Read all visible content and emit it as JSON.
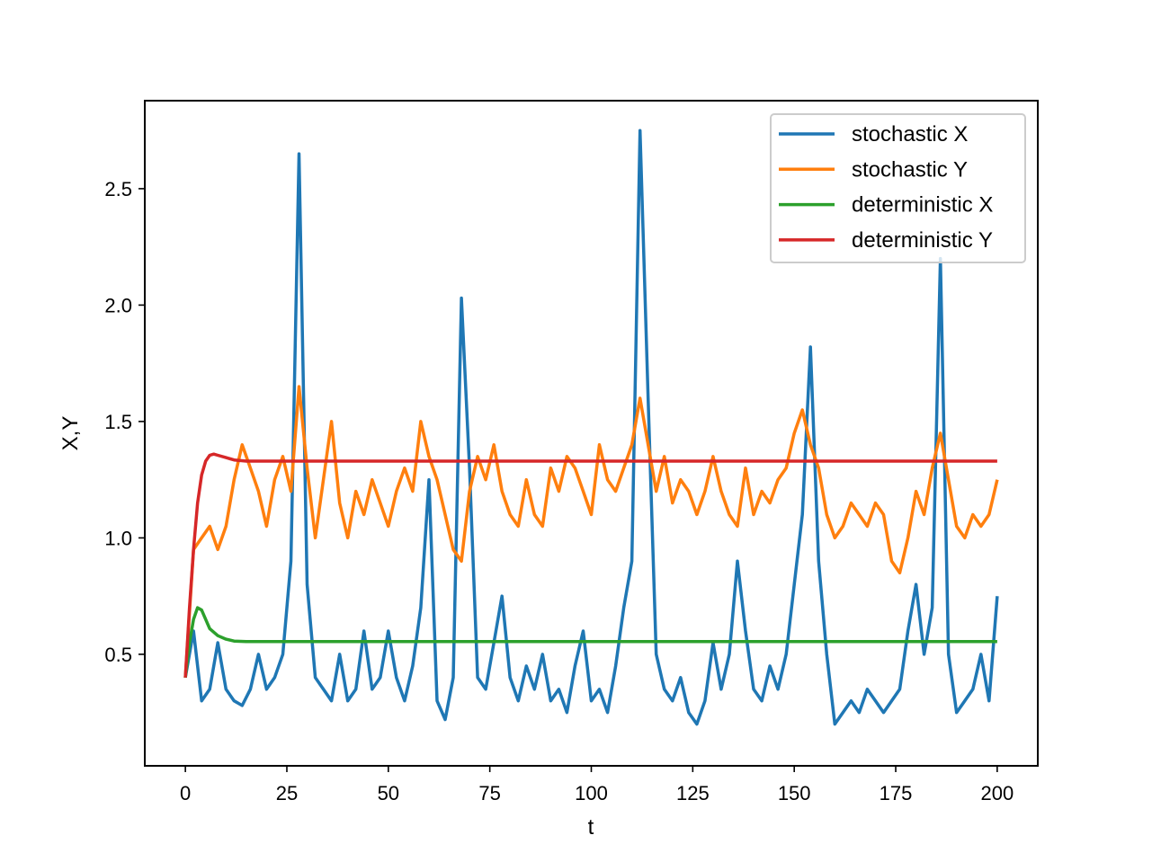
{
  "chart_data": {
    "type": "line",
    "title": "",
    "xlabel": "t",
    "ylabel": "X,Y",
    "xlim": [
      -10,
      210
    ],
    "ylim": [
      0.021,
      2.878
    ],
    "xticks": [
      0,
      25,
      50,
      75,
      100,
      125,
      150,
      175,
      200
    ],
    "xtick_labels": [
      "0",
      "25",
      "50",
      "75",
      "100",
      "125",
      "150",
      "175",
      "200"
    ],
    "yticks": [
      0.5,
      1.0,
      1.5,
      2.0,
      2.5
    ],
    "ytick_labels": [
      "0.5",
      "1.0",
      "1.5",
      "2.0",
      "2.5"
    ],
    "grid": false,
    "legend_position": "top-right",
    "series": [
      {
        "name": "stochastic X",
        "color": "#1f77b4",
        "x_start": 0,
        "x_step": 2,
        "values": [
          0.4,
          0.6,
          0.3,
          0.35,
          0.55,
          0.35,
          0.3,
          0.28,
          0.35,
          0.5,
          0.35,
          0.4,
          0.5,
          0.9,
          2.65,
          0.8,
          0.4,
          0.35,
          0.3,
          0.5,
          0.3,
          0.35,
          0.6,
          0.35,
          0.4,
          0.6,
          0.4,
          0.3,
          0.45,
          0.7,
          1.25,
          0.3,
          0.22,
          0.4,
          2.03,
          1.3,
          0.4,
          0.35,
          0.55,
          0.75,
          0.4,
          0.3,
          0.45,
          0.35,
          0.5,
          0.3,
          0.35,
          0.25,
          0.45,
          0.6,
          0.3,
          0.35,
          0.25,
          0.45,
          0.7,
          0.9,
          2.75,
          1.6,
          0.5,
          0.35,
          0.3,
          0.4,
          0.25,
          0.2,
          0.3,
          0.55,
          0.35,
          0.5,
          0.9,
          0.6,
          0.35,
          0.3,
          0.45,
          0.35,
          0.5,
          0.8,
          1.1,
          1.82,
          0.9,
          0.5,
          0.2,
          0.25,
          0.3,
          0.25,
          0.35,
          0.3,
          0.25,
          0.3,
          0.35,
          0.6,
          0.8,
          0.5,
          0.7,
          2.2,
          0.5,
          0.25,
          0.3,
          0.35,
          0.5,
          0.3,
          0.75
        ]
      },
      {
        "name": "stochastic Y",
        "color": "#ff7f0e",
        "x_start": 0,
        "x_step": 2,
        "values": [
          0.4,
          0.95,
          1.0,
          1.05,
          0.95,
          1.05,
          1.25,
          1.4,
          1.3,
          1.2,
          1.05,
          1.25,
          1.35,
          1.2,
          1.65,
          1.3,
          1.0,
          1.25,
          1.5,
          1.15,
          1.0,
          1.2,
          1.1,
          1.25,
          1.15,
          1.05,
          1.2,
          1.3,
          1.2,
          1.5,
          1.35,
          1.25,
          1.1,
          0.95,
          0.9,
          1.2,
          1.35,
          1.25,
          1.4,
          1.2,
          1.1,
          1.05,
          1.25,
          1.1,
          1.05,
          1.3,
          1.2,
          1.35,
          1.3,
          1.2,
          1.1,
          1.4,
          1.25,
          1.2,
          1.3,
          1.4,
          1.6,
          1.4,
          1.2,
          1.35,
          1.15,
          1.25,
          1.2,
          1.1,
          1.2,
          1.35,
          1.2,
          1.1,
          1.05,
          1.3,
          1.1,
          1.2,
          1.15,
          1.25,
          1.3,
          1.45,
          1.55,
          1.4,
          1.3,
          1.1,
          1.0,
          1.05,
          1.15,
          1.1,
          1.05,
          1.15,
          1.1,
          0.9,
          0.85,
          1.0,
          1.2,
          1.1,
          1.3,
          1.45,
          1.25,
          1.05,
          1.0,
          1.1,
          1.05,
          1.1,
          1.25
        ]
      },
      {
        "name": "deterministic X",
        "color": "#2ca02c",
        "x": [
          0,
          1,
          2,
          3,
          4,
          5,
          6,
          8,
          10,
          12,
          15,
          200
        ],
        "values": [
          0.4,
          0.55,
          0.65,
          0.7,
          0.69,
          0.65,
          0.61,
          0.58,
          0.565,
          0.557,
          0.555,
          0.555
        ]
      },
      {
        "name": "deterministic Y",
        "color": "#d62728",
        "x": [
          0,
          1,
          2,
          3,
          4,
          5,
          6,
          7,
          8,
          10,
          12,
          15,
          200
        ],
        "values": [
          0.4,
          0.7,
          0.95,
          1.15,
          1.27,
          1.33,
          1.355,
          1.36,
          1.355,
          1.345,
          1.335,
          1.33,
          1.33
        ]
      }
    ]
  }
}
